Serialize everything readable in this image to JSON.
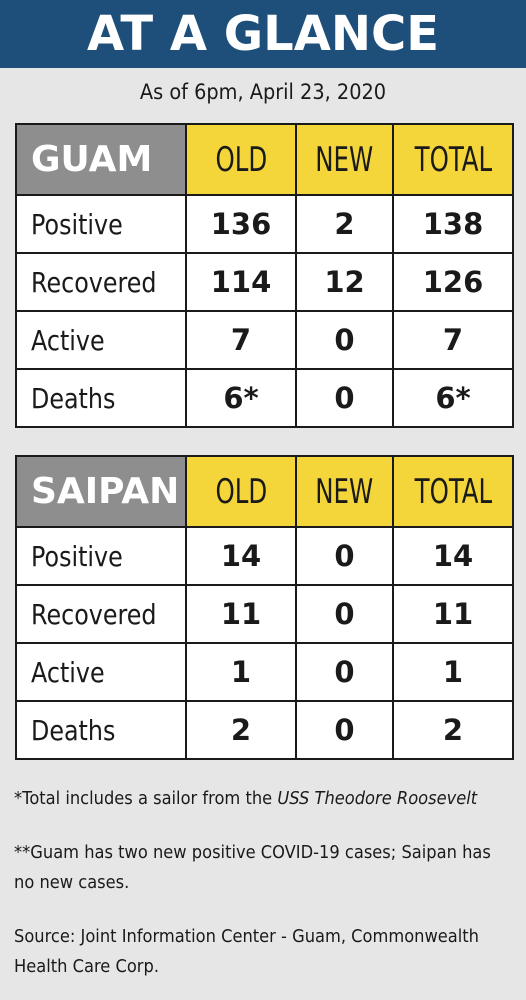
{
  "header": {
    "title": "AT A GLANCE"
  },
  "as_of": "As of 6pm, April 23, 2020",
  "columns": [
    "OLD",
    "NEW",
    "TOTAL"
  ],
  "tables": [
    {
      "location": "GUAM",
      "rows": [
        {
          "label": "Positive",
          "old": "136",
          "new": "2",
          "total": "138"
        },
        {
          "label": "Recovered",
          "old": "114",
          "new": "12",
          "total": "126"
        },
        {
          "label": "Active",
          "old": "7",
          "new": "0",
          "total": "7"
        },
        {
          "label": "Deaths",
          "old": "6*",
          "new": "0",
          "total": "6*"
        }
      ]
    },
    {
      "location": "SAIPAN",
      "rows": [
        {
          "label": "Positive",
          "old": "14",
          "new": "0",
          "total": "14"
        },
        {
          "label": "Recovered",
          "old": "11",
          "new": "0",
          "total": "11"
        },
        {
          "label": "Active",
          "old": "1",
          "new": "0",
          "total": "1"
        },
        {
          "label": "Deaths",
          "old": "2",
          "new": "0",
          "total": "2"
        }
      ]
    }
  ],
  "notes": {
    "footnote_1_prefix": "*Total includes a sailor from the ",
    "footnote_1_ship": "USS Theodore Roosevelt",
    "footnote_2": "**Guam has two new positive COVID-19 cases; Saipan has no new cases.",
    "source": "Source: Joint Information Center - Guam, Commonwealth Health Care Corp."
  },
  "colors": {
    "header_bg": "#1d4f7a",
    "location_bg": "#8e8e8e",
    "column_header_bg": "#f4d63b",
    "page_bg": "#e6e6e6"
  }
}
